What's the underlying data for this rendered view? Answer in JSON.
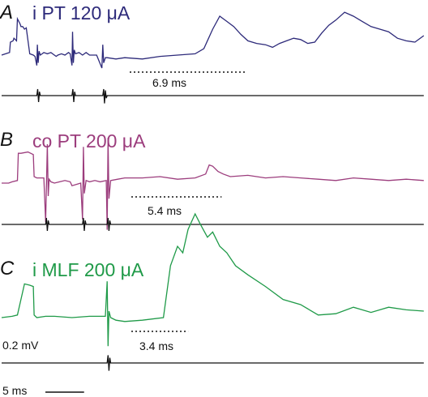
{
  "chart_data": {
    "type": "line",
    "time_unit": "ms",
    "panels": [
      {
        "letter": "A",
        "title": "i PT 120 μA",
        "color": "#2d2a7a",
        "delay_label": "6.9 ms",
        "delay_ms": 6.9,
        "trace": {
          "x_ms": [
            0,
            0.45,
            0.5,
            0.65,
            0.7,
            0.85,
            0.9,
            1.05,
            1.1,
            1.2,
            1.3,
            1.4,
            1.6,
            1.8,
            1.9,
            2.0,
            2.03,
            2.08,
            2.13,
            2.2,
            2.4,
            2.6,
            2.8,
            3.0,
            3.1,
            3.2,
            3.4,
            3.6,
            3.8,
            3.9,
            4.0,
            4.03,
            4.08,
            4.13,
            4.2,
            4.4,
            4.6,
            4.8,
            5.0,
            5.4,
            5.7,
            5.75,
            5.8,
            5.9,
            6.0,
            6.5,
            7.0,
            8.0,
            9.0,
            10.0,
            11.0,
            11.5,
            12.0,
            12.4,
            12.8,
            13.2,
            13.6,
            14.0,
            14.5,
            15.0,
            15.4,
            15.8,
            16.2,
            16.6,
            17.0,
            17.4,
            17.8,
            18.2,
            18.6,
            19.0,
            19.5,
            20.0,
            20.5,
            21.0,
            21.5,
            22.0,
            22.5,
            23.0,
            23.5,
            24.0
          ],
          "y_mV": [
            0,
            0.02,
            0.1,
            0.11,
            0.13,
            0.11,
            0.28,
            0.24,
            0.22,
            0.22,
            0.2,
            0.21,
            0.01,
            0,
            -0.01,
            -0.08,
            0.08,
            -0.06,
            0.03,
            0,
            0.02,
            0.01,
            0.02,
            0,
            -0.01,
            0,
            0.01,
            0,
            0.02,
            0.01,
            -0.08,
            0.18,
            -0.06,
            0.04,
            0.01,
            0.02,
            0,
            0.02,
            0,
            0,
            -0.1,
            0.08,
            -0.06,
            -0.02,
            -0.02,
            -0.03,
            -0.02,
            -0.03,
            -0.01,
            0,
            0.01,
            0.05,
            0.2,
            0.3,
            0.26,
            0.22,
            0.16,
            0.11,
            0.09,
            0.08,
            0.06,
            0.09,
            0.11,
            0.13,
            0.12,
            0.09,
            0.1,
            0.17,
            0.23,
            0.27,
            0.33,
            0.3,
            0.26,
            0.22,
            0.2,
            0.18,
            0.13,
            0.11,
            0.1,
            0.15
          ]
        },
        "stimulus": {
          "x_ms": [
            0,
            2.0,
            2.05,
            2.1,
            2.15,
            2.2,
            4.0,
            4.05,
            4.1,
            4.15,
            4.2,
            5.75,
            5.8,
            5.85,
            5.9,
            5.95,
            6.0,
            24.0
          ],
          "y_mV": [
            0,
            0,
            0.05,
            -0.05,
            0.03,
            0,
            0,
            0.05,
            -0.05,
            0.03,
            0,
            0,
            0.05,
            -0.06,
            0.04,
            -0.02,
            0,
            0
          ]
        }
      },
      {
        "letter": "B",
        "title": "co PT 200 μA",
        "color": "#9c3d7d",
        "delay_label": "5.4 ms",
        "delay_ms": 5.4,
        "trace": {
          "x_ms": [
            0,
            0.4,
            0.6,
            0.9,
            0.95,
            1.1,
            1.5,
            1.8,
            1.85,
            2.0,
            2.4,
            2.5,
            2.6,
            2.65,
            2.7,
            2.8,
            3.0,
            3.3,
            3.6,
            3.9,
            4.0,
            4.5,
            4.6,
            4.65,
            4.7,
            4.8,
            5.0,
            5.3,
            5.6,
            5.95,
            6.0,
            6.05,
            6.1,
            6.2,
            6.6,
            7.0,
            8.0,
            9.0,
            10.0,
            11.0,
            11.6,
            11.8,
            12.0,
            12.3,
            12.6,
            13.0,
            14.0,
            15.0,
            16.0,
            17.0,
            18.0,
            19.0,
            20.0,
            21.0,
            22.0,
            23.0,
            24.0
          ],
          "y_mV": [
            0,
            0,
            0.01,
            0.02,
            0.23,
            0.23,
            0.24,
            0.22,
            0.05,
            0.04,
            0.04,
            -0.3,
            0.3,
            -0.1,
            0.03,
            0.01,
            0,
            0.01,
            0.02,
            0.01,
            -0.02,
            0,
            -0.28,
            0.28,
            -0.08,
            0.02,
            0.01,
            0.02,
            0.01,
            0.02,
            -0.36,
            0.35,
            -0.12,
            0.02,
            0.03,
            0.04,
            0.04,
            0.05,
            0.03,
            0.04,
            0.07,
            0.14,
            0.13,
            0.09,
            0.07,
            0.05,
            0.06,
            0.04,
            0.05,
            0.04,
            0.03,
            0.02,
            0.04,
            0.03,
            0.02,
            0.03,
            0.02
          ]
        },
        "stimulus": {
          "x_ms": [
            0,
            2.5,
            2.55,
            2.6,
            2.65,
            2.7,
            4.6,
            4.65,
            4.7,
            4.75,
            4.8,
            6.0,
            6.05,
            6.1,
            6.15,
            6.2,
            24.0
          ],
          "y_mV": [
            0,
            0,
            0.05,
            -0.05,
            0.03,
            0,
            0,
            0.05,
            -0.05,
            0.03,
            0,
            0,
            0.05,
            -0.05,
            0.03,
            0,
            0
          ]
        }
      },
      {
        "letter": "C",
        "title": "i MLF 200 μA",
        "color": "#1f9a48",
        "delay_label": "3.4 ms",
        "delay_ms": 3.4,
        "trace": {
          "x_ms": [
            0,
            0.6,
            0.9,
            1.3,
            1.6,
            1.8,
            1.85,
            2.0,
            2.5,
            3.0,
            4.0,
            5.0,
            5.9,
            6.0,
            6.05,
            6.1,
            6.2,
            6.5,
            7.0,
            8.0,
            9.2,
            9.6,
            10.0,
            10.3,
            10.6,
            11.0,
            11.3,
            11.7,
            12.0,
            12.4,
            12.8,
            13.3,
            14.0,
            15.0,
            16.0,
            17.0,
            18.0,
            19.0,
            20.0,
            21.0,
            22.0,
            23.0,
            24.0
          ],
          "y_mV": [
            0,
            0.01,
            0.02,
            0.26,
            0.25,
            0.24,
            0.02,
            0,
            0.01,
            0.01,
            0,
            0.01,
            0.01,
            0.28,
            -0.22,
            0.05,
            0,
            -0.02,
            -0.03,
            -0.02,
            0,
            0.4,
            0.55,
            0.5,
            0.68,
            0.8,
            0.72,
            0.62,
            0.66,
            0.55,
            0.5,
            0.4,
            0.33,
            0.24,
            0.14,
            0.1,
            0.02,
            0.03,
            0.08,
            0.04,
            0.08,
            0.06,
            0.05
          ]
        },
        "stimulus": {
          "x_ms": [
            0,
            6.0,
            6.05,
            6.1,
            6.15,
            6.2,
            24.0
          ],
          "y_mV": [
            0,
            0,
            0.06,
            -0.06,
            0.04,
            0,
            0
          ]
        }
      }
    ],
    "scale_bars": {
      "voltage_label": "0.2 mV",
      "voltage_mV": 0.2,
      "time_label": "5 ms",
      "time_ms": 5
    }
  }
}
